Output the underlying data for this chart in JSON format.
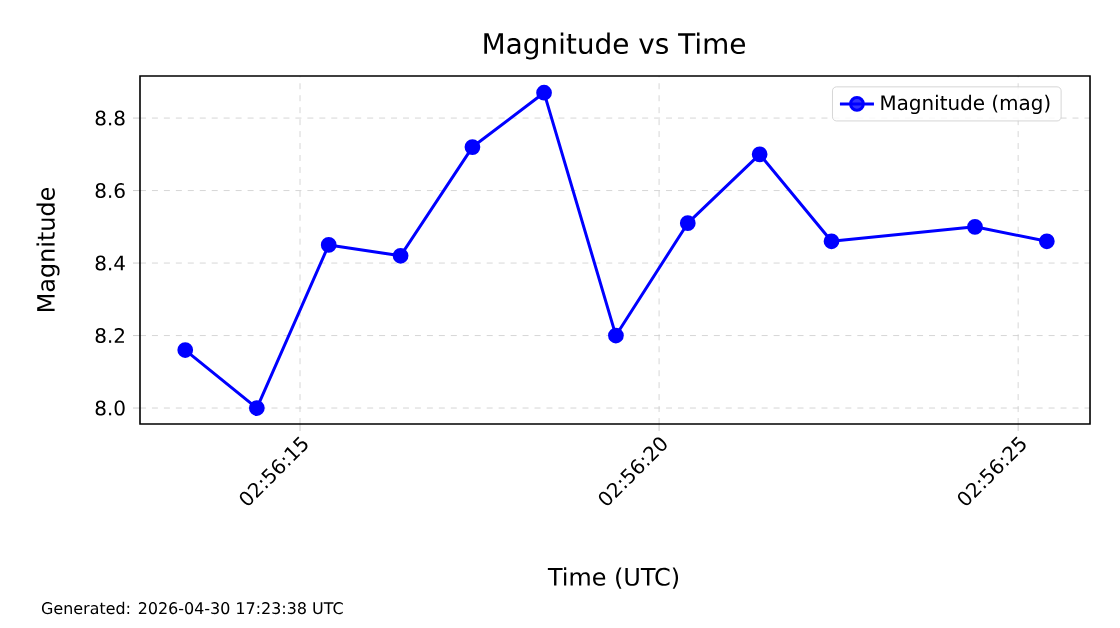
{
  "chart_data": {
    "type": "line",
    "title": "Magnitude vs Time",
    "xlabel": "Time (UTC)",
    "ylabel": "Magnitude",
    "annotations": [
      "Generated: 2026-04-30 17:23:38 UTC"
    ],
    "x": [
      2.937056,
      2.937333,
      2.937611,
      2.937889,
      2.938167,
      2.938444,
      2.938722,
      2.939,
      2.939278,
      2.939556,
      2.940111,
      2.940389
    ],
    "series": [
      {
        "name": "Magnitude (mag)",
        "color": "#0000ff",
        "values": [
          8.16,
          8.0,
          8.45,
          8.42,
          8.72,
          8.87,
          8.2,
          8.51,
          8.7,
          8.46,
          8.5,
          8.46
        ]
      }
    ],
    "xlim": [
      2.936881,
      2.940556
    ],
    "xticks": [
      {
        "value": 2.9375,
        "label": "02:56:15"
      },
      {
        "value": 2.938889,
        "label": "02:56:20"
      },
      {
        "value": 2.940278,
        "label": "02:56:25"
      }
    ],
    "ylim": [
      7.956,
      8.916
    ],
    "yticks": [
      {
        "value": 8.0,
        "label": "8.0"
      },
      {
        "value": 8.2,
        "label": "8.2"
      },
      {
        "value": 8.4,
        "label": "8.4"
      },
      {
        "value": 8.6,
        "label": "8.6"
      },
      {
        "value": 8.8,
        "label": "8.8"
      }
    ],
    "grid": true,
    "legend": "top right",
    "marker": "circle",
    "line_style": "solid"
  }
}
